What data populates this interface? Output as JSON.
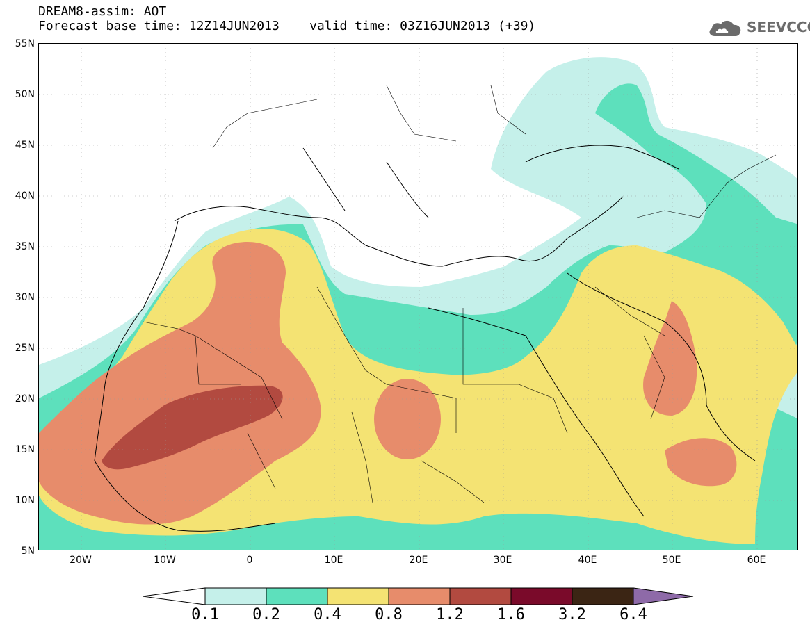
{
  "title": {
    "line1": "DREAM8-assim: AOT",
    "line2": "Forecast base time: 12Z14JUN2013    valid time: 03Z16JUN2013 (+39)"
  },
  "logo": {
    "text": "SEEVCCC",
    "icon": "cloud-icon"
  },
  "map": {
    "region": "North Africa / Mediterranean / Middle East",
    "lon_range": [
      -25,
      65
    ],
    "lat_range": [
      5,
      55
    ],
    "grid": true,
    "lat_labels": [
      "55N",
      "50N",
      "45N",
      "40N",
      "35N",
      "30N",
      "25N",
      "20N",
      "15N",
      "10N",
      "5N"
    ],
    "lon_labels": [
      "20W",
      "10W",
      "0",
      "10E",
      "20E",
      "30E",
      "40E",
      "50E",
      "60E"
    ]
  },
  "colorbar": {
    "levels": [
      "0.1",
      "0.2",
      "0.4",
      "0.8",
      "1.2",
      "1.6",
      "3.2",
      "6.4"
    ],
    "colors": [
      "#c5f0ea",
      "#5de0bc",
      "#f4e373",
      "#e78c6b",
      "#b24a40",
      "#7a0a2a",
      "#3b2514",
      "#8e6aa8"
    ]
  }
}
